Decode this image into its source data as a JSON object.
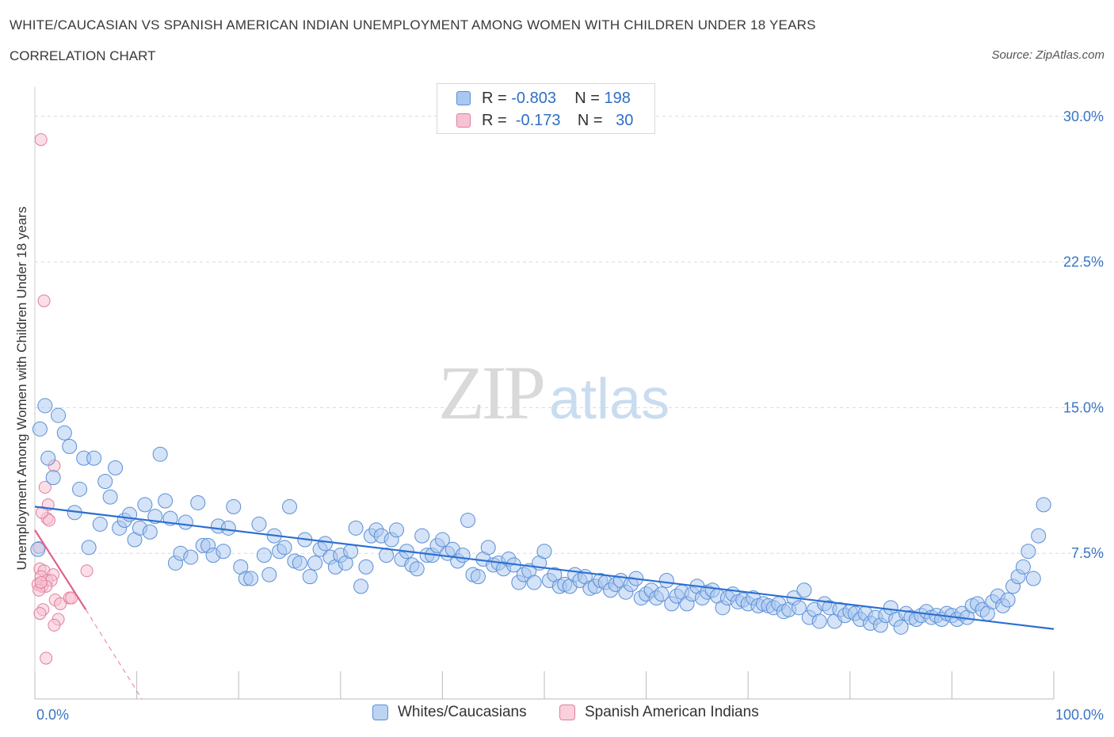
{
  "title": "WHITE/CAUCASIAN VS SPANISH AMERICAN INDIAN UNEMPLOYMENT AMONG WOMEN WITH CHILDREN UNDER 18 YEARS",
  "subtitle": "CORRELATION CHART",
  "source": "Source: ZipAtlas.com",
  "watermark": {
    "zip": "ZIP",
    "atlas": "atlas"
  },
  "legend": {
    "rows": [
      {
        "r_label": "R =",
        "r_value": "-0.803",
        "n_label": "N =",
        "n_value": "198",
        "color": "#a9c8f0"
      },
      {
        "r_label": "R =",
        "r_value": "-0.173",
        "n_label": "N =",
        "n_value": "30",
        "color": "#f5b9c9"
      }
    ]
  },
  "bottom_legend": {
    "series1": "Whites/Caucasians",
    "series2": "Spanish American Indians"
  },
  "colors": {
    "blue_fill": "#a9c8f0",
    "blue_stroke": "#5b8fd6",
    "blue_line": "#2b6fd0",
    "pink_fill": "#f7c2d1",
    "pink_stroke": "#e07f9f",
    "pink_line": "#e0608a",
    "axis_text": "#3a74c4",
    "grid": "#d9d9d9"
  },
  "chart_data": {
    "type": "scatter",
    "title": "WHITE/CAUCASIAN VS SPANISH AMERICAN INDIAN UNEMPLOYMENT AMONG WOMEN WITH CHILDREN UNDER 18 YEARS",
    "xlabel": "",
    "ylabel": "Unemployment Among Women with Children Under 18 years",
    "xlim": [
      0,
      100
    ],
    "ylim": [
      0,
      31.5
    ],
    "x_tick_labels": [
      "0.0%",
      "100.0%"
    ],
    "y_ticks": [
      7.5,
      15.0,
      22.5,
      30.0
    ],
    "y_tick_labels": [
      "7.5%",
      "15.0%",
      "22.5%",
      "30.0%"
    ],
    "grid": true,
    "legend_position": "top-center",
    "series": [
      {
        "name": "Whites/Caucasians",
        "trend": {
          "x": [
            0,
            100
          ],
          "y": [
            9.9,
            3.6
          ]
        },
        "points": [
          [
            0.5,
            13.9
          ],
          [
            1,
            15.1
          ],
          [
            1.3,
            12.4
          ],
          [
            1.8,
            11.4
          ],
          [
            2.3,
            14.6
          ],
          [
            2.9,
            13.7
          ],
          [
            3.4,
            13.0
          ],
          [
            3.9,
            9.6
          ],
          [
            4.4,
            10.8
          ],
          [
            4.8,
            12.4
          ],
          [
            5.3,
            7.8
          ],
          [
            5.8,
            12.4
          ],
          [
            6.4,
            9.0
          ],
          [
            6.9,
            11.2
          ],
          [
            7.4,
            10.4
          ],
          [
            7.9,
            11.9
          ],
          [
            8.3,
            8.8
          ],
          [
            8.8,
            9.2
          ],
          [
            9.3,
            9.5
          ],
          [
            9.8,
            8.2
          ],
          [
            10.3,
            8.8
          ],
          [
            10.8,
            10.0
          ],
          [
            11.3,
            8.6
          ],
          [
            11.8,
            9.4
          ],
          [
            12.3,
            12.6
          ],
          [
            12.8,
            10.2
          ],
          [
            13.3,
            9.3
          ],
          [
            13.8,
            7.0
          ],
          [
            14.3,
            7.5
          ],
          [
            14.8,
            9.1
          ],
          [
            15.3,
            7.3
          ],
          [
            16.0,
            10.1
          ],
          [
            16.5,
            7.9
          ],
          [
            17.0,
            7.9
          ],
          [
            17.5,
            7.4
          ],
          [
            18.0,
            8.9
          ],
          [
            18.5,
            7.6
          ],
          [
            19.0,
            8.8
          ],
          [
            19.5,
            9.9
          ],
          [
            20.2,
            6.8
          ],
          [
            20.7,
            6.2
          ],
          [
            21.2,
            6.2
          ],
          [
            22.0,
            9.0
          ],
          [
            22.5,
            7.4
          ],
          [
            23.0,
            6.4
          ],
          [
            23.5,
            8.4
          ],
          [
            24.0,
            7.6
          ],
          [
            24.5,
            7.8
          ],
          [
            25.0,
            9.9
          ],
          [
            25.5,
            7.1
          ],
          [
            26.0,
            7.0
          ],
          [
            26.5,
            8.2
          ],
          [
            27.0,
            6.3
          ],
          [
            27.5,
            7.0
          ],
          [
            28.0,
            7.7
          ],
          [
            28.5,
            8.0
          ],
          [
            29.0,
            7.3
          ],
          [
            29.5,
            6.8
          ],
          [
            30.0,
            7.4
          ],
          [
            30.5,
            7.0
          ],
          [
            31.0,
            7.6
          ],
          [
            31.5,
            8.8
          ],
          [
            32.0,
            5.8
          ],
          [
            32.5,
            6.8
          ],
          [
            33.0,
            8.4
          ],
          [
            33.5,
            8.7
          ],
          [
            34.0,
            8.4
          ],
          [
            34.5,
            7.4
          ],
          [
            35.0,
            8.2
          ],
          [
            35.5,
            8.7
          ],
          [
            36.0,
            7.2
          ],
          [
            36.5,
            7.6
          ],
          [
            37.0,
            6.9
          ],
          [
            37.5,
            6.7
          ],
          [
            38.0,
            8.4
          ],
          [
            38.5,
            7.4
          ],
          [
            39.0,
            7.4
          ],
          [
            39.5,
            7.9
          ],
          [
            40.0,
            8.2
          ],
          [
            40.5,
            7.5
          ],
          [
            41.0,
            7.7
          ],
          [
            41.5,
            7.1
          ],
          [
            42.0,
            7.4
          ],
          [
            42.5,
            9.2
          ],
          [
            43.0,
            6.4
          ],
          [
            43.5,
            6.3
          ],
          [
            44.0,
            7.2
          ],
          [
            44.5,
            7.8
          ],
          [
            45.0,
            6.9
          ],
          [
            45.5,
            7.0
          ],
          [
            46.0,
            6.7
          ],
          [
            46.5,
            7.2
          ],
          [
            47.0,
            6.9
          ],
          [
            47.5,
            6.0
          ],
          [
            48.0,
            6.4
          ],
          [
            48.5,
            6.6
          ],
          [
            49.0,
            6.0
          ],
          [
            49.5,
            7.0
          ],
          [
            50.0,
            7.6
          ],
          [
            50.5,
            6.1
          ],
          [
            51.0,
            6.4
          ],
          [
            51.5,
            5.8
          ],
          [
            52.0,
            5.9
          ],
          [
            52.5,
            5.8
          ],
          [
            53.0,
            6.4
          ],
          [
            53.5,
            6.1
          ],
          [
            54.0,
            6.3
          ],
          [
            54.5,
            5.7
          ],
          [
            55.0,
            5.8
          ],
          [
            55.5,
            6.1
          ],
          [
            56.0,
            6.0
          ],
          [
            56.5,
            5.6
          ],
          [
            57.0,
            5.9
          ],
          [
            57.5,
            6.1
          ],
          [
            58.0,
            5.5
          ],
          [
            58.5,
            5.9
          ],
          [
            59.0,
            6.2
          ],
          [
            59.5,
            5.2
          ],
          [
            60.0,
            5.4
          ],
          [
            60.5,
            5.6
          ],
          [
            61.0,
            5.2
          ],
          [
            61.5,
            5.4
          ],
          [
            62.0,
            6.1
          ],
          [
            62.5,
            4.9
          ],
          [
            63.0,
            5.3
          ],
          [
            63.5,
            5.5
          ],
          [
            64.0,
            4.9
          ],
          [
            64.5,
            5.4
          ],
          [
            65.0,
            5.8
          ],
          [
            65.5,
            5.2
          ],
          [
            66.0,
            5.5
          ],
          [
            66.5,
            5.6
          ],
          [
            67.0,
            5.3
          ],
          [
            67.5,
            4.7
          ],
          [
            68.0,
            5.2
          ],
          [
            68.5,
            5.4
          ],
          [
            69.0,
            5.0
          ],
          [
            69.5,
            5.1
          ],
          [
            70.0,
            4.9
          ],
          [
            70.5,
            5.2
          ],
          [
            71.0,
            4.8
          ],
          [
            71.5,
            4.9
          ],
          [
            72.0,
            4.8
          ],
          [
            72.5,
            4.7
          ],
          [
            73.0,
            4.9
          ],
          [
            73.5,
            4.5
          ],
          [
            74.0,
            4.6
          ],
          [
            74.5,
            5.2
          ],
          [
            75.0,
            4.7
          ],
          [
            75.5,
            5.6
          ],
          [
            76.0,
            4.2
          ],
          [
            76.5,
            4.6
          ],
          [
            77.0,
            4.0
          ],
          [
            77.5,
            4.9
          ],
          [
            78.0,
            4.7
          ],
          [
            78.5,
            4.0
          ],
          [
            79.0,
            4.6
          ],
          [
            79.5,
            4.3
          ],
          [
            80.0,
            4.5
          ],
          [
            80.5,
            4.4
          ],
          [
            81.0,
            4.1
          ],
          [
            81.5,
            4.4
          ],
          [
            82.0,
            3.9
          ],
          [
            82.5,
            4.2
          ],
          [
            83.0,
            3.8
          ],
          [
            83.5,
            4.3
          ],
          [
            84.0,
            4.7
          ],
          [
            84.5,
            4.1
          ],
          [
            85.0,
            3.7
          ],
          [
            85.5,
            4.4
          ],
          [
            86.0,
            4.2
          ],
          [
            86.5,
            4.1
          ],
          [
            87.0,
            4.3
          ],
          [
            87.5,
            4.5
          ],
          [
            88.0,
            4.2
          ],
          [
            88.5,
            4.3
          ],
          [
            89.0,
            4.1
          ],
          [
            89.5,
            4.4
          ],
          [
            90.0,
            4.3
          ],
          [
            90.5,
            4.1
          ],
          [
            91.0,
            4.4
          ],
          [
            91.5,
            4.2
          ],
          [
            92.0,
            4.8
          ],
          [
            92.5,
            4.9
          ],
          [
            93.0,
            4.6
          ],
          [
            93.5,
            4.4
          ],
          [
            94.0,
            5.0
          ],
          [
            94.5,
            5.3
          ],
          [
            95.0,
            4.8
          ],
          [
            95.5,
            5.1
          ],
          [
            96.0,
            5.8
          ],
          [
            96.5,
            6.3
          ],
          [
            97.0,
            6.8
          ],
          [
            97.5,
            7.6
          ],
          [
            98.0,
            6.2
          ],
          [
            98.5,
            8.4
          ],
          [
            99.0,
            10.0
          ],
          [
            0.3,
            7.7
          ]
        ]
      },
      {
        "name": "Spanish American Indians",
        "trend": {
          "x": [
            0,
            5
          ],
          "y": [
            8.7,
            4.6
          ]
        },
        "trend_extension": {
          "x": [
            5,
            10.5
          ],
          "y": [
            4.6,
            0
          ]
        },
        "points": [
          [
            0.6,
            28.8
          ],
          [
            0.9,
            20.5
          ],
          [
            1.9,
            12.0
          ],
          [
            1.0,
            10.9
          ],
          [
            1.3,
            10.0
          ],
          [
            1.2,
            9.3
          ],
          [
            1.4,
            9.2
          ],
          [
            0.7,
            9.6
          ],
          [
            0.4,
            7.8
          ],
          [
            0.5,
            6.7
          ],
          [
            0.9,
            6.6
          ],
          [
            1.8,
            6.4
          ],
          [
            0.6,
            6.3
          ],
          [
            1.2,
            6.1
          ],
          [
            1.6,
            6.1
          ],
          [
            0.3,
            5.9
          ],
          [
            0.7,
            5.8
          ],
          [
            1.1,
            5.8
          ],
          [
            0.4,
            5.6
          ],
          [
            5.1,
            6.6
          ],
          [
            2.0,
            5.1
          ],
          [
            2.5,
            4.9
          ],
          [
            3.4,
            5.2
          ],
          [
            3.6,
            5.2
          ],
          [
            0.8,
            4.6
          ],
          [
            0.5,
            4.4
          ],
          [
            2.3,
            4.1
          ],
          [
            1.9,
            3.8
          ],
          [
            1.1,
            2.1
          ],
          [
            0.6,
            6.0
          ]
        ]
      }
    ]
  }
}
